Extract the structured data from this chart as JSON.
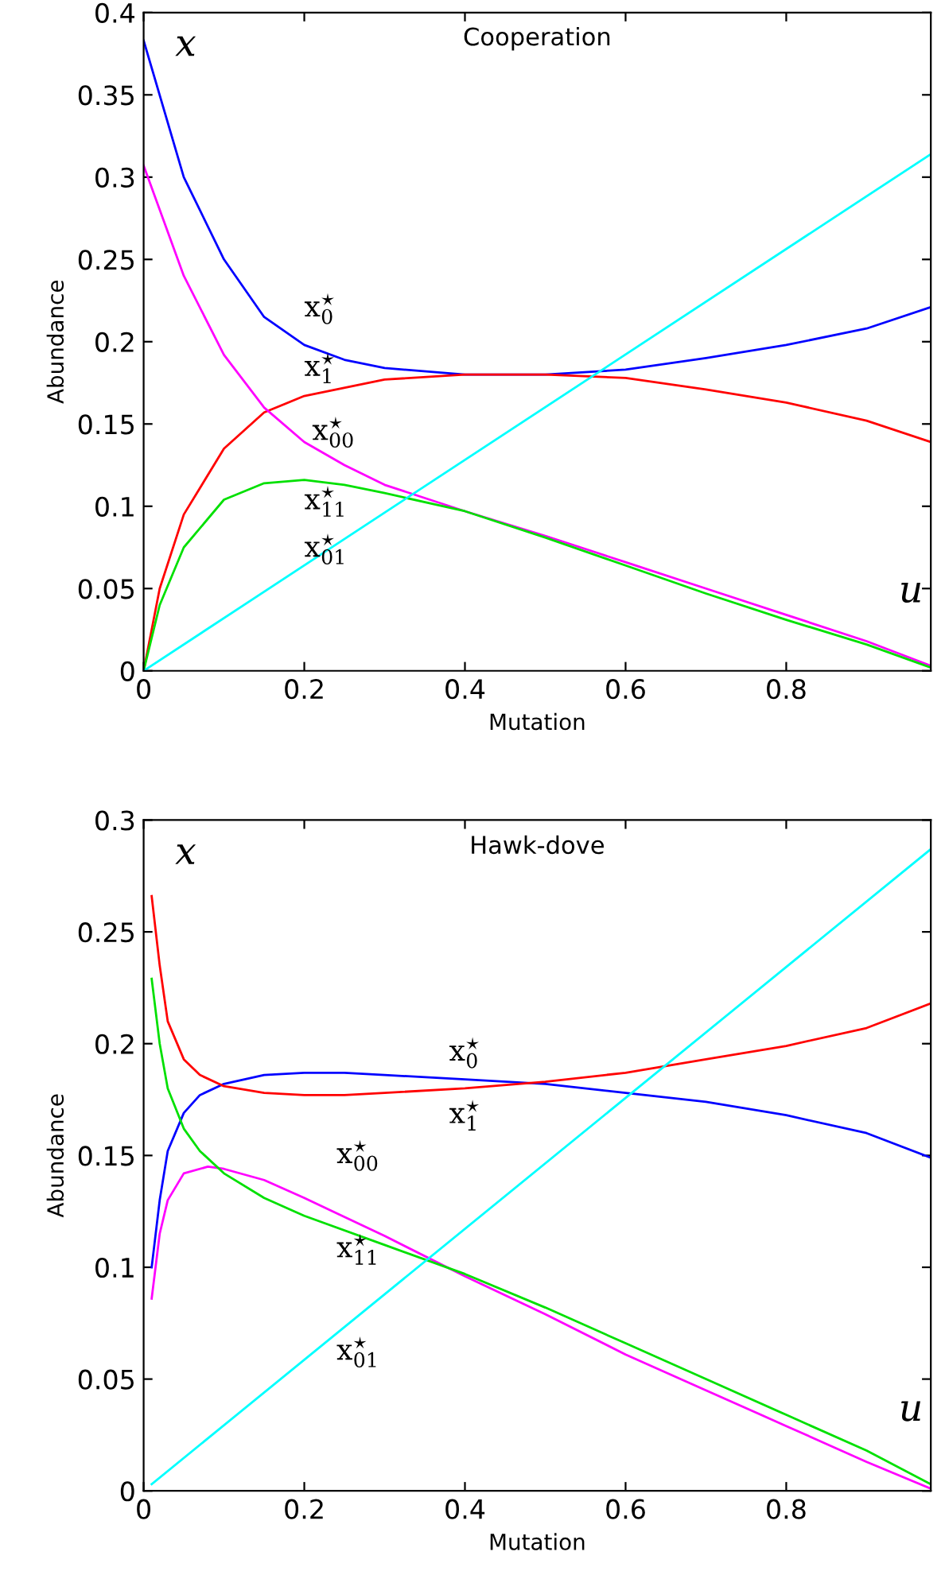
{
  "chart_data": [
    {
      "type": "line",
      "title": "Cooperation",
      "xlabel": "Mutation",
      "ylabel": "Abundance",
      "xlim": [
        0,
        0.98
      ],
      "xticks": [
        0,
        0.2,
        0.4,
        0.6,
        0.8
      ],
      "ylim": [
        0,
        0.4
      ],
      "yticks": [
        0,
        0.05,
        0.1,
        0.15,
        0.2,
        0.25,
        0.3,
        0.35,
        0.4
      ],
      "grid": false,
      "legend": false,
      "series": [
        {
          "color": "#0000ff",
          "x": [
            0,
            0.05,
            0.1,
            0.15,
            0.2,
            0.25,
            0.3,
            0.4,
            0.5,
            0.6,
            0.7,
            0.8,
            0.9,
            0.98
          ],
          "values": [
            0.383,
            0.3,
            0.25,
            0.215,
            0.198,
            0.189,
            0.184,
            0.18,
            0.18,
            0.183,
            0.19,
            0.198,
            0.208,
            0.221
          ]
        },
        {
          "color": "#ff0000",
          "x": [
            0,
            0.02,
            0.05,
            0.1,
            0.15,
            0.2,
            0.3,
            0.4,
            0.5,
            0.6,
            0.7,
            0.8,
            0.9,
            0.98
          ],
          "values": [
            0,
            0.05,
            0.095,
            0.135,
            0.157,
            0.167,
            0.177,
            0.18,
            0.18,
            0.178,
            0.171,
            0.163,
            0.152,
            0.139
          ]
        },
        {
          "color": "#ff00ff",
          "x": [
            0,
            0.05,
            0.1,
            0.15,
            0.2,
            0.25,
            0.3,
            0.4,
            0.5,
            0.6,
            0.7,
            0.8,
            0.9,
            0.98
          ],
          "values": [
            0.307,
            0.24,
            0.192,
            0.16,
            0.139,
            0.125,
            0.113,
            0.097,
            0.082,
            0.066,
            0.05,
            0.034,
            0.018,
            0.003
          ]
        },
        {
          "color": "#00e000",
          "x": [
            0,
            0.02,
            0.05,
            0.1,
            0.15,
            0.2,
            0.25,
            0.3,
            0.4,
            0.5,
            0.6,
            0.7,
            0.8,
            0.9,
            0.98
          ],
          "values": [
            0,
            0.04,
            0.075,
            0.104,
            0.114,
            0.116,
            0.113,
            0.108,
            0.097,
            0.081,
            0.064,
            0.047,
            0.031,
            0.016,
            0.002
          ]
        },
        {
          "color": "#00ffff",
          "x": [
            0,
            0.98
          ],
          "values": [
            0,
            0.314
          ]
        }
      ],
      "annotations": [
        "x",
        "u",
        "x$^{⋆}$$_{0}$",
        "x$^{⋆}$$_{1}$",
        "x$^{⋆}$$_{00}$",
        "x$^{⋆}$$_{11}$",
        "x$^{⋆}$$_{01}$"
      ]
    },
    {
      "type": "line",
      "title": "Hawk-dove",
      "xlabel": "Mutation",
      "ylabel": "Abundance",
      "xlim": [
        0,
        0.98
      ],
      "xticks": [
        0,
        0.2,
        0.4,
        0.6,
        0.8
      ],
      "ylim": [
        0,
        0.3
      ],
      "yticks": [
        0,
        0.05,
        0.1,
        0.15,
        0.2,
        0.25,
        0.3
      ],
      "grid": false,
      "legend": false,
      "series": [
        {
          "color": "#0000ff",
          "x": [
            0.01,
            0.02,
            0.03,
            0.05,
            0.07,
            0.1,
            0.15,
            0.2,
            0.25,
            0.3,
            0.4,
            0.5,
            0.6,
            0.7,
            0.8,
            0.9,
            0.98
          ],
          "values": [
            0.1,
            0.13,
            0.152,
            0.169,
            0.177,
            0.182,
            0.186,
            0.187,
            0.187,
            0.186,
            0.184,
            0.182,
            0.178,
            0.174,
            0.168,
            0.16,
            0.149
          ]
        },
        {
          "color": "#ff0000",
          "x": [
            0.01,
            0.02,
            0.03,
            0.05,
            0.07,
            0.1,
            0.15,
            0.2,
            0.25,
            0.3,
            0.4,
            0.5,
            0.6,
            0.65,
            0.7,
            0.8,
            0.9,
            0.98
          ],
          "values": [
            0.266,
            0.235,
            0.21,
            0.193,
            0.186,
            0.181,
            0.178,
            0.177,
            0.177,
            0.178,
            0.18,
            0.183,
            0.187,
            0.19,
            0.193,
            0.199,
            0.207,
            0.218
          ]
        },
        {
          "color": "#ff00ff",
          "x": [
            0.01,
            0.02,
            0.03,
            0.05,
            0.08,
            0.1,
            0.15,
            0.2,
            0.3,
            0.4,
            0.5,
            0.6,
            0.7,
            0.8,
            0.9,
            0.98
          ],
          "values": [
            0.086,
            0.115,
            0.13,
            0.142,
            0.145,
            0.144,
            0.139,
            0.131,
            0.114,
            0.096,
            0.079,
            0.061,
            0.045,
            0.029,
            0.013,
            0.001
          ]
        },
        {
          "color": "#00e000",
          "x": [
            0.01,
            0.02,
            0.03,
            0.05,
            0.07,
            0.1,
            0.15,
            0.2,
            0.3,
            0.4,
            0.5,
            0.6,
            0.7,
            0.8,
            0.9,
            0.98
          ],
          "values": [
            0.229,
            0.2,
            0.18,
            0.162,
            0.152,
            0.142,
            0.131,
            0.123,
            0.11,
            0.097,
            0.082,
            0.066,
            0.05,
            0.034,
            0.018,
            0.003
          ]
        },
        {
          "color": "#00ffff",
          "x": [
            0.01,
            0.98
          ],
          "values": [
            0.003,
            0.287
          ]
        }
      ],
      "annotations": [
        "x",
        "u",
        "x$^{⋆}$$_{0}$",
        "x$^{⋆}$$_{1}$",
        "x$^{⋆}$$_{00}$",
        "x$^{⋆}$$_{11}$",
        "x$^{⋆}$$_{01}$"
      ]
    }
  ]
}
